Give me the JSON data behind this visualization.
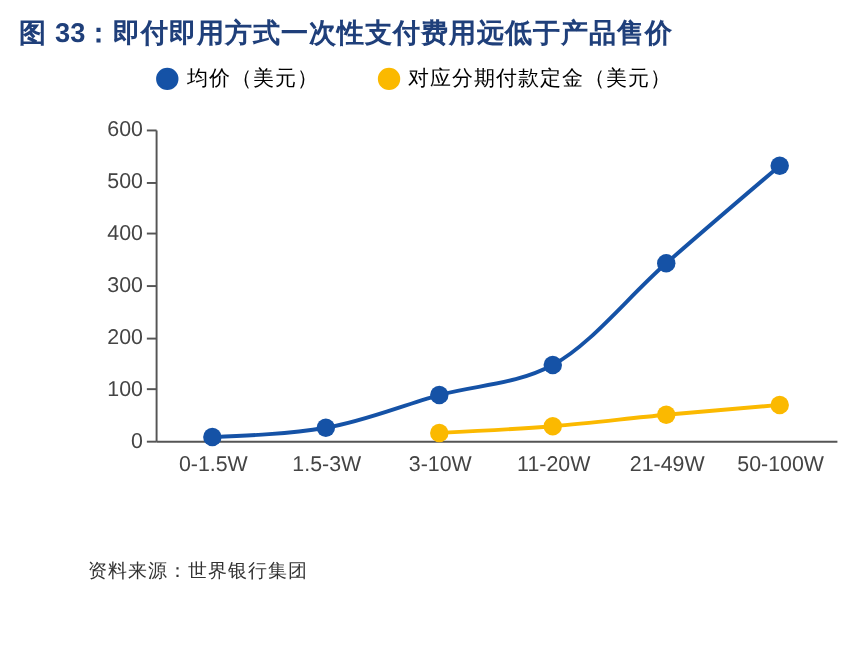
{
  "chart_data": {
    "type": "line",
    "title": "图 33：即付即用方式一次性支付费用远低于产品售价",
    "categories": [
      "0-1.5W",
      "1.5-3W",
      "3-10W",
      "11-20W",
      "21-49W",
      "50-100W"
    ],
    "series": [
      {
        "name": "均价（美元）",
        "color": "#1552a6",
        "values": [
          7,
          25,
          88,
          146,
          342,
          530
        ]
      },
      {
        "name": "对应分期付款定金（美元）",
        "color": "#fbb900",
        "values": [
          null,
          null,
          15,
          28,
          50,
          69
        ]
      }
    ],
    "ylim": [
      0,
      600
    ],
    "yticks": [
      0,
      100,
      200,
      300,
      400,
      500,
      600
    ],
    "grid": false,
    "legend": "top",
    "marker": "circle",
    "line_style": "solid",
    "annotations": [
      "资料来源：世界银行集团"
    ]
  }
}
